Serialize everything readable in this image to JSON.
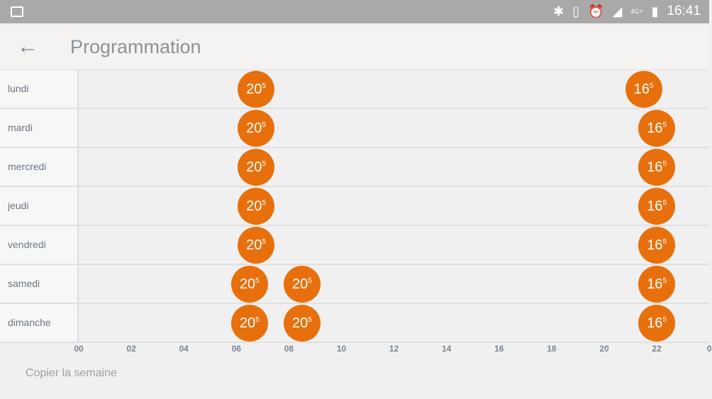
{
  "status_bar": {
    "time": "16:41",
    "network": "4G+",
    "icons": [
      "image-icon",
      "bluetooth-icon",
      "vibrate-icon",
      "alarm-icon",
      "signal-icon",
      "battery-icon"
    ]
  },
  "header": {
    "title": "Programmation",
    "back_icon": "arrow-left-icon"
  },
  "colors": {
    "accent": "#e8700c"
  },
  "schedule": [
    {
      "day": "lundi",
      "events": [
        {
          "time": "06:45",
          "temp": "20",
          "decimal": "5"
        },
        {
          "time": "21:30",
          "temp": "16",
          "decimal": "5"
        }
      ]
    },
    {
      "day": "mardi",
      "events": [
        {
          "time": "06:45",
          "temp": "20",
          "decimal": "5"
        },
        {
          "time": "22:00",
          "temp": "16",
          "decimal": "5"
        }
      ]
    },
    {
      "day": "mercredi",
      "events": [
        {
          "time": "06:45",
          "temp": "20",
          "decimal": "5"
        },
        {
          "time": "22:00",
          "temp": "16",
          "decimal": "5"
        }
      ]
    },
    {
      "day": "jeudi",
      "events": [
        {
          "time": "06:45",
          "temp": "20",
          "decimal": "5"
        },
        {
          "time": "22:00",
          "temp": "16",
          "decimal": "5"
        }
      ]
    },
    {
      "day": "vendredi",
      "events": [
        {
          "time": "06:45",
          "temp": "20",
          "decimal": "5"
        },
        {
          "time": "22:00",
          "temp": "16",
          "decimal": "5"
        }
      ]
    },
    {
      "day": "samedi",
      "events": [
        {
          "time": "06:30",
          "temp": "20",
          "decimal": "5"
        },
        {
          "time": "08:30",
          "temp": "20",
          "decimal": "5"
        },
        {
          "time": "22:00",
          "temp": "16",
          "decimal": "5"
        }
      ]
    },
    {
      "day": "dimanche",
      "events": [
        {
          "time": "06:30",
          "temp": "20",
          "decimal": "5"
        },
        {
          "time": "08:30",
          "temp": "20",
          "decimal": "5"
        },
        {
          "time": "22:00",
          "temp": "16",
          "decimal": "5"
        }
      ]
    }
  ],
  "axis_ticks": [
    "00",
    "02",
    "04",
    "06",
    "08",
    "10",
    "12",
    "14",
    "16",
    "18",
    "20",
    "22",
    "0"
  ],
  "copy_week_label": "Copier la semaine"
}
